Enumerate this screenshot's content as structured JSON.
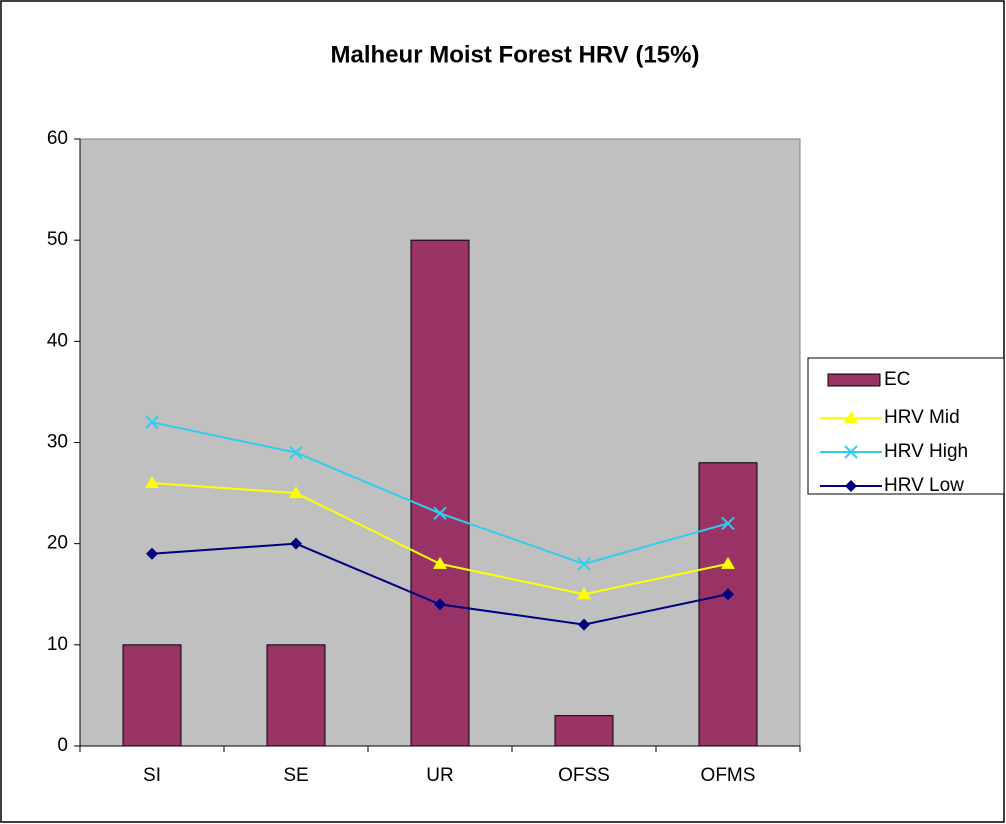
{
  "chart_data": {
    "type": "bar",
    "title": "Malheur Moist Forest HRV (15%)",
    "categories": [
      "SI",
      "SE",
      "UR",
      "OFSS",
      "OFMS"
    ],
    "series": [
      {
        "name": "EC",
        "type": "bar",
        "color": "#993366",
        "values": [
          10,
          10,
          50,
          3,
          28
        ]
      },
      {
        "name": "HRV Mid",
        "type": "line",
        "marker": "triangle",
        "color": "#ffff00",
        "values": [
          26,
          25,
          18,
          15,
          18
        ]
      },
      {
        "name": "HRV High",
        "type": "line",
        "marker": "x",
        "color": "#33ccee",
        "values": [
          32,
          29,
          23,
          18,
          22
        ]
      },
      {
        "name": "HRV Low",
        "type": "line",
        "marker": "diamond",
        "color": "#000080",
        "values": [
          19,
          20,
          14,
          12,
          15
        ]
      }
    ],
    "ylim": [
      0,
      60
    ],
    "yticks": [
      0,
      10,
      20,
      30,
      40,
      50,
      60
    ],
    "legend": "right"
  }
}
